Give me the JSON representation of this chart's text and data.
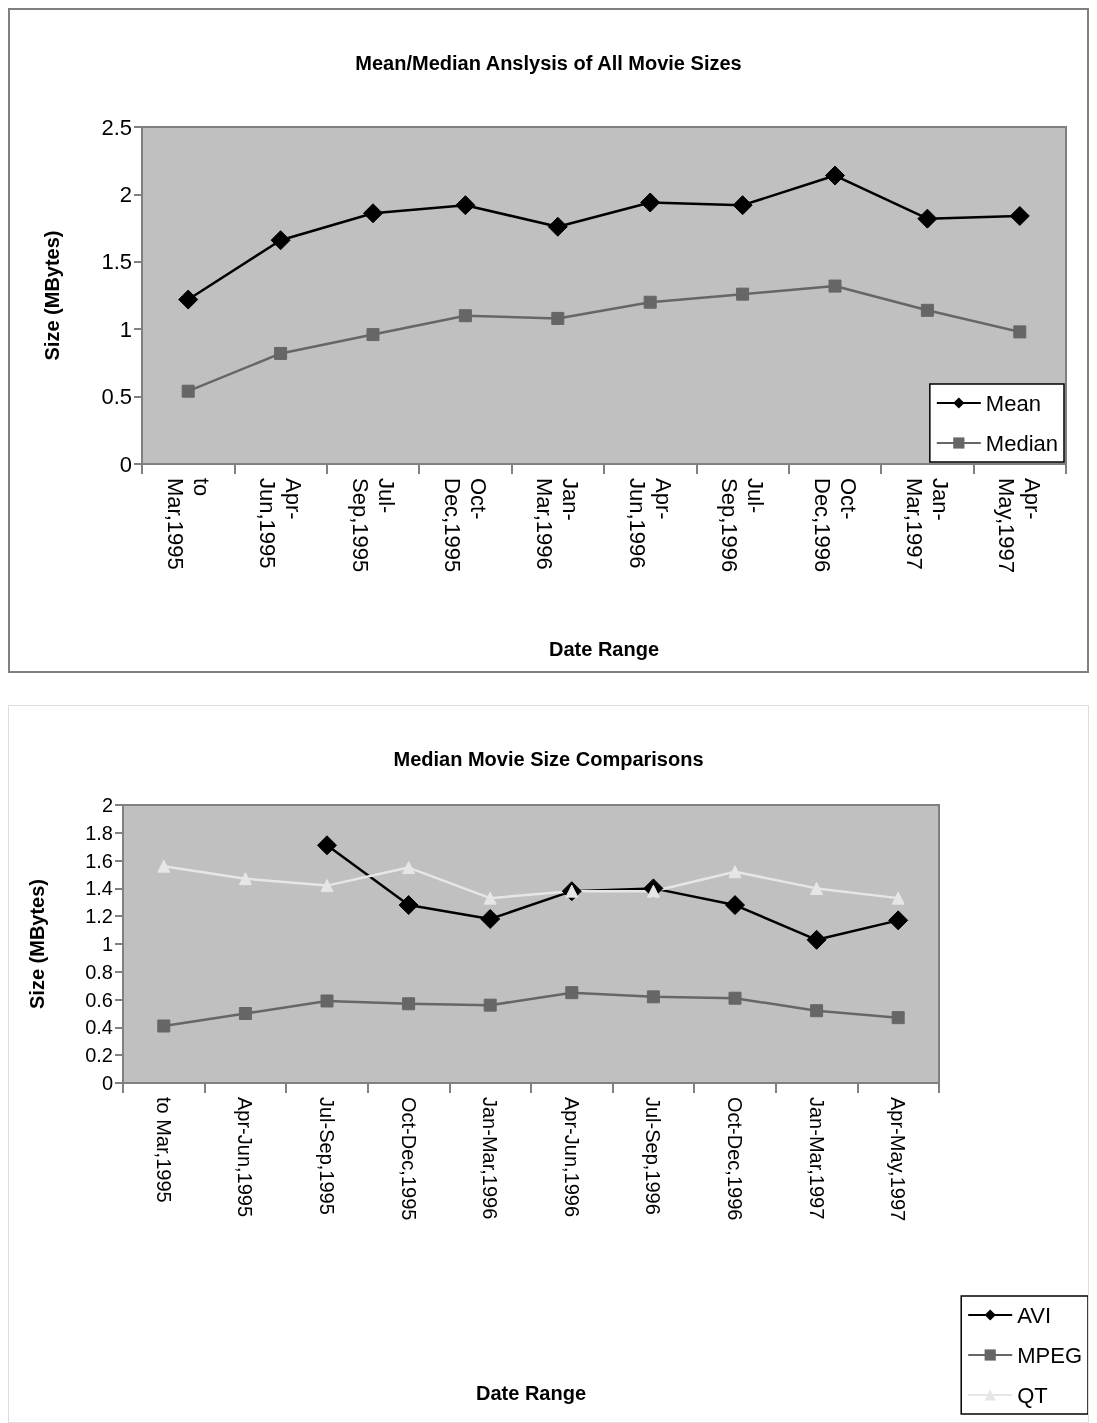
{
  "chart_data": [
    {
      "type": "line",
      "title": "Mean/Median Anslysis of All Movie Sizes",
      "xlabel": "Date Range",
      "ylabel": "Size (MBytes)",
      "categories": [
        "to Mar,1995",
        "Apr-Jun,1995",
        "Jul-Sep,1995",
        "Oct-Dec,1995",
        "Jan-Mar,1996",
        "Apr-Jun,1996",
        "Jul-Sep,1996",
        "Oct-Dec,1996",
        "Jan-Mar,1997",
        "Apr-May,1997"
      ],
      "series": [
        {
          "name": "Mean",
          "color": "#000000",
          "marker": "diamond",
          "values": [
            1.22,
            1.66,
            1.86,
            1.92,
            1.76,
            1.94,
            1.92,
            2.14,
            1.82,
            1.84
          ]
        },
        {
          "name": "Median",
          "color": "#666666",
          "marker": "square",
          "values": [
            0.54,
            0.82,
            0.96,
            1.1,
            1.08,
            1.2,
            1.26,
            1.32,
            1.14,
            0.98
          ]
        }
      ],
      "ylim": [
        0,
        2.5
      ],
      "yticks": [
        0,
        0.5,
        1,
        1.5,
        2,
        2.5
      ],
      "grid": false,
      "legend": "bottom right"
    },
    {
      "type": "line",
      "title": "Median Movie Size Comparisons",
      "xlabel": "Date Range",
      "ylabel": "Size (MBytes)",
      "categories": [
        "to Mar,1995",
        "Apr-Jun,1995",
        "Jul-Sep,1995",
        "Oct-Dec,1995",
        "Jan-Mar,1996",
        "Apr-Jun,1996",
        "Jul-Sep,1996",
        "Oct-Dec,1996",
        "Jan-Mar,1997",
        "Apr-May,1997"
      ],
      "series": [
        {
          "name": "AVI",
          "color": "#000000",
          "marker": "diamond",
          "values": [
            null,
            null,
            1.71,
            1.28,
            1.18,
            1.38,
            1.4,
            1.28,
            1.03,
            1.17
          ]
        },
        {
          "name": "MPEG",
          "color": "#666666",
          "marker": "square",
          "values": [
            0.41,
            0.5,
            0.59,
            0.57,
            0.56,
            0.65,
            0.62,
            0.61,
            0.52,
            0.47
          ]
        },
        {
          "name": "QT",
          "color": "#e6e6e6",
          "marker": "triangle",
          "values": [
            1.56,
            1.47,
            1.42,
            1.55,
            1.33,
            1.38,
            1.38,
            1.52,
            1.4,
            1.33
          ]
        }
      ],
      "ylim": [
        0,
        2
      ],
      "yticks": [
        0,
        0.2,
        0.4,
        0.6,
        0.8,
        1,
        1.2,
        1.4,
        1.6,
        1.8,
        2
      ],
      "grid": false,
      "legend": "bottom right"
    }
  ]
}
